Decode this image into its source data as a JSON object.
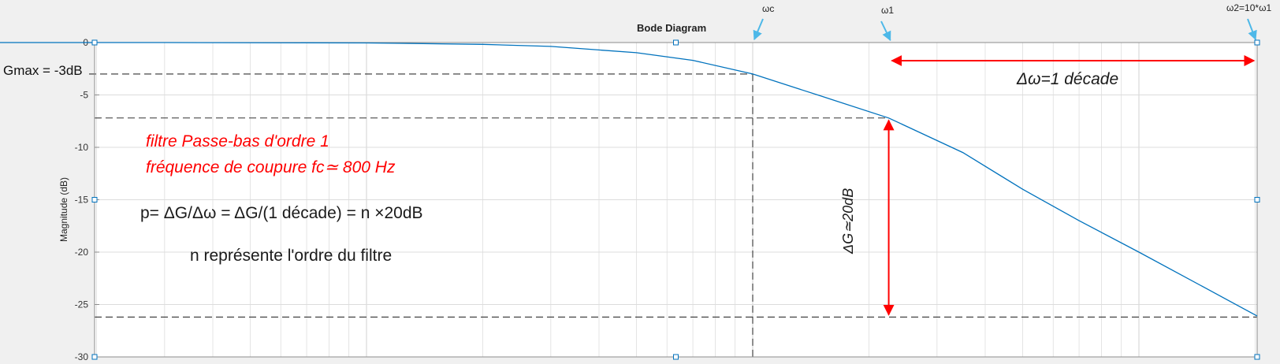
{
  "chart_data": {
    "type": "line",
    "title": "Bode Diagram",
    "xlabel": "",
    "ylabel": "Magnitude (dB)",
    "xscale": "log",
    "x_range_decades": [
      -2.4,
      1
    ],
    "ylim": [
      -30,
      0
    ],
    "yticks": [
      0,
      -5,
      -10,
      -15,
      -20,
      -25,
      -30
    ],
    "ytick_labels": [
      "0",
      "-5",
      "-10",
      "-15",
      "-20",
      "-25",
      "-30"
    ],
    "grid": true,
    "series": [
      {
        "color": "#0072bd",
        "x_rel_wc": [
          0.004,
          0.01,
          0.03,
          0.1,
          0.2,
          0.3,
          0.5,
          0.7,
          1.0,
          1.5,
          2.25,
          3.5,
          5,
          7,
          10,
          15,
          22.5
        ],
        "values": [
          0.0,
          0.0,
          0.0,
          -0.04,
          -0.17,
          -0.37,
          -0.97,
          -1.7,
          -3.0,
          -5.1,
          -7.2,
          -10.5,
          -14.0,
          -17.0,
          -20.0,
          -23.5,
          -26.1
        ]
      }
    ],
    "reference_levels_db": [
      -3,
      -7.2,
      -26.2
    ],
    "markers": {
      "wc": "ωc",
      "w1": "ω1",
      "w2": "ω2=10*ω1"
    },
    "annotations": {
      "gmax": "Gmax = -3dB",
      "delta_omega": "Δω=1 décade",
      "delta_g": "ΔG≃20dB",
      "filter_type": "filtre Passe-bas d'ordre 1",
      "cutoff": "fréquence de coupure fc≃ 800 Hz",
      "slope": "p=  ΔG/Δω = ΔG/(1 décade) = n ×20dB",
      "order_note": "n représente l'ordre du filtre"
    },
    "colors": {
      "curve": "#0072bd",
      "arrows": "#ff0000",
      "markers": "#4db8e8"
    }
  }
}
